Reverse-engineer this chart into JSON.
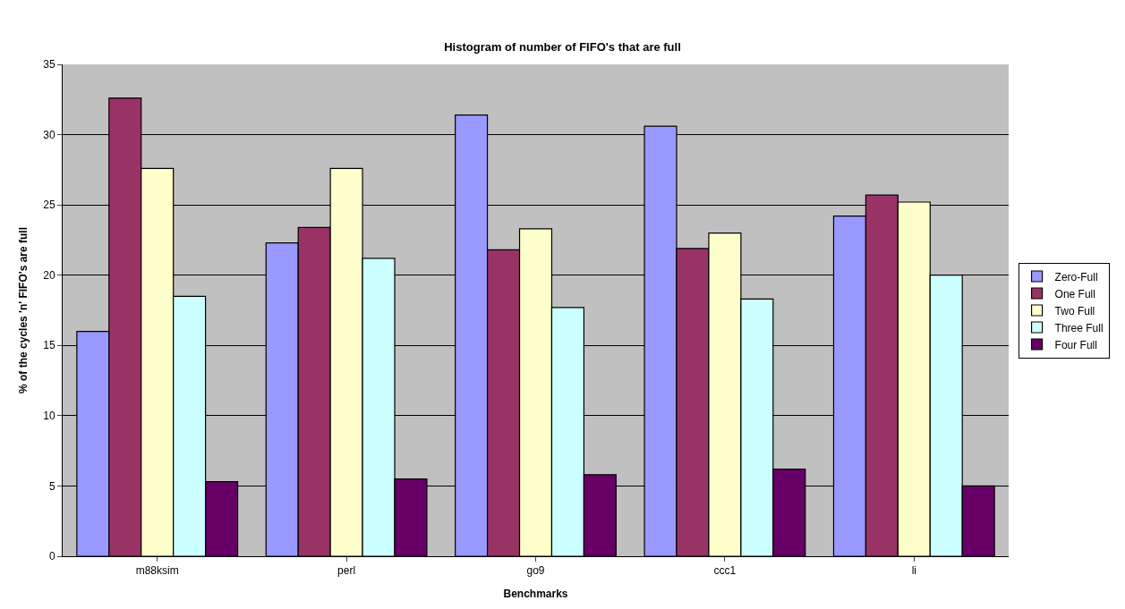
{
  "chart_data": {
    "type": "bar",
    "title": "Histogram of number of FIFO's that are full",
    "xlabel": "Benchmarks",
    "ylabel": "% of the cycles 'n' FIFO's are full",
    "categories": [
      "m88ksim",
      "perl",
      "go9",
      "ccc1",
      "li"
    ],
    "series": [
      {
        "name": "Zero-Full",
        "color": "#9999ff",
        "values": [
          16.0,
          22.3,
          31.4,
          30.6,
          24.2
        ]
      },
      {
        "name": "One Full",
        "color": "#993366",
        "values": [
          32.6,
          23.4,
          21.8,
          21.9,
          25.7
        ]
      },
      {
        "name": "Two Full",
        "color": "#ffffcc",
        "values": [
          27.6,
          27.6,
          23.3,
          23.0,
          25.2
        ]
      },
      {
        "name": "Three Full",
        "color": "#ccffff",
        "values": [
          18.5,
          21.2,
          17.7,
          18.3,
          20.0
        ]
      },
      {
        "name": "Four Full",
        "color": "#660066",
        "values": [
          5.3,
          5.5,
          5.8,
          6.2,
          5.0
        ]
      }
    ],
    "ylim": [
      0,
      35
    ],
    "yticks": [
      0,
      5,
      10,
      15,
      20,
      25,
      30,
      35
    ],
    "grid": "y",
    "legend": "right"
  }
}
